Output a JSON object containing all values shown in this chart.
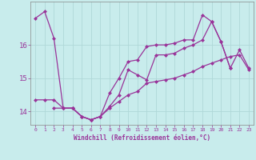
{
  "xlabel": "Windchill (Refroidissement éolien,°C)",
  "ylabel": "",
  "background_color": "#c8ecec",
  "grid_color": "#b0d8d8",
  "line_color": "#993399",
  "xlim": [
    -0.5,
    23.5
  ],
  "ylim": [
    13.6,
    17.3
  ],
  "xticks": [
    0,
    1,
    2,
    3,
    4,
    5,
    6,
    7,
    8,
    9,
    10,
    11,
    12,
    13,
    14,
    15,
    16,
    17,
    18,
    19,
    20,
    21,
    22,
    23
  ],
  "yticks": [
    14,
    15,
    16
  ],
  "series1_x": [
    0,
    1,
    2,
    3,
    4,
    5,
    6,
    7,
    8,
    9,
    10,
    11,
    12,
    13,
    14,
    15,
    16,
    17,
    18,
    19,
    20,
    21
  ],
  "series1_y": [
    16.8,
    17.0,
    16.2,
    14.1,
    14.1,
    13.85,
    13.75,
    13.85,
    14.55,
    15.0,
    15.5,
    15.55,
    15.95,
    16.0,
    16.0,
    16.05,
    16.15,
    16.15,
    16.9,
    16.7,
    16.1,
    15.3
  ],
  "series2_x": [
    2,
    3,
    4,
    5,
    6,
    7,
    8,
    9,
    10,
    11,
    12,
    13,
    14,
    15,
    16,
    17,
    18,
    19,
    20,
    21,
    22,
    23
  ],
  "series2_y": [
    14.1,
    14.1,
    14.1,
    13.85,
    13.75,
    13.85,
    14.15,
    14.5,
    15.25,
    15.1,
    14.95,
    15.7,
    15.7,
    15.75,
    15.9,
    16.0,
    16.15,
    16.7,
    16.1,
    15.3,
    15.85,
    15.3
  ],
  "series3_x": [
    0,
    1,
    2,
    3,
    4,
    5,
    6,
    7,
    8,
    9,
    10,
    11,
    12,
    13,
    14,
    15,
    16,
    17,
    18,
    19,
    20,
    21,
    22,
    23
  ],
  "series3_y": [
    14.35,
    14.35,
    14.35,
    14.1,
    14.1,
    13.85,
    13.75,
    13.85,
    14.1,
    14.3,
    14.5,
    14.6,
    14.85,
    14.9,
    14.95,
    15.0,
    15.1,
    15.2,
    15.35,
    15.45,
    15.55,
    15.65,
    15.7,
    15.25
  ],
  "marker": "D",
  "marker_size": 2.5,
  "line_width": 0.9
}
